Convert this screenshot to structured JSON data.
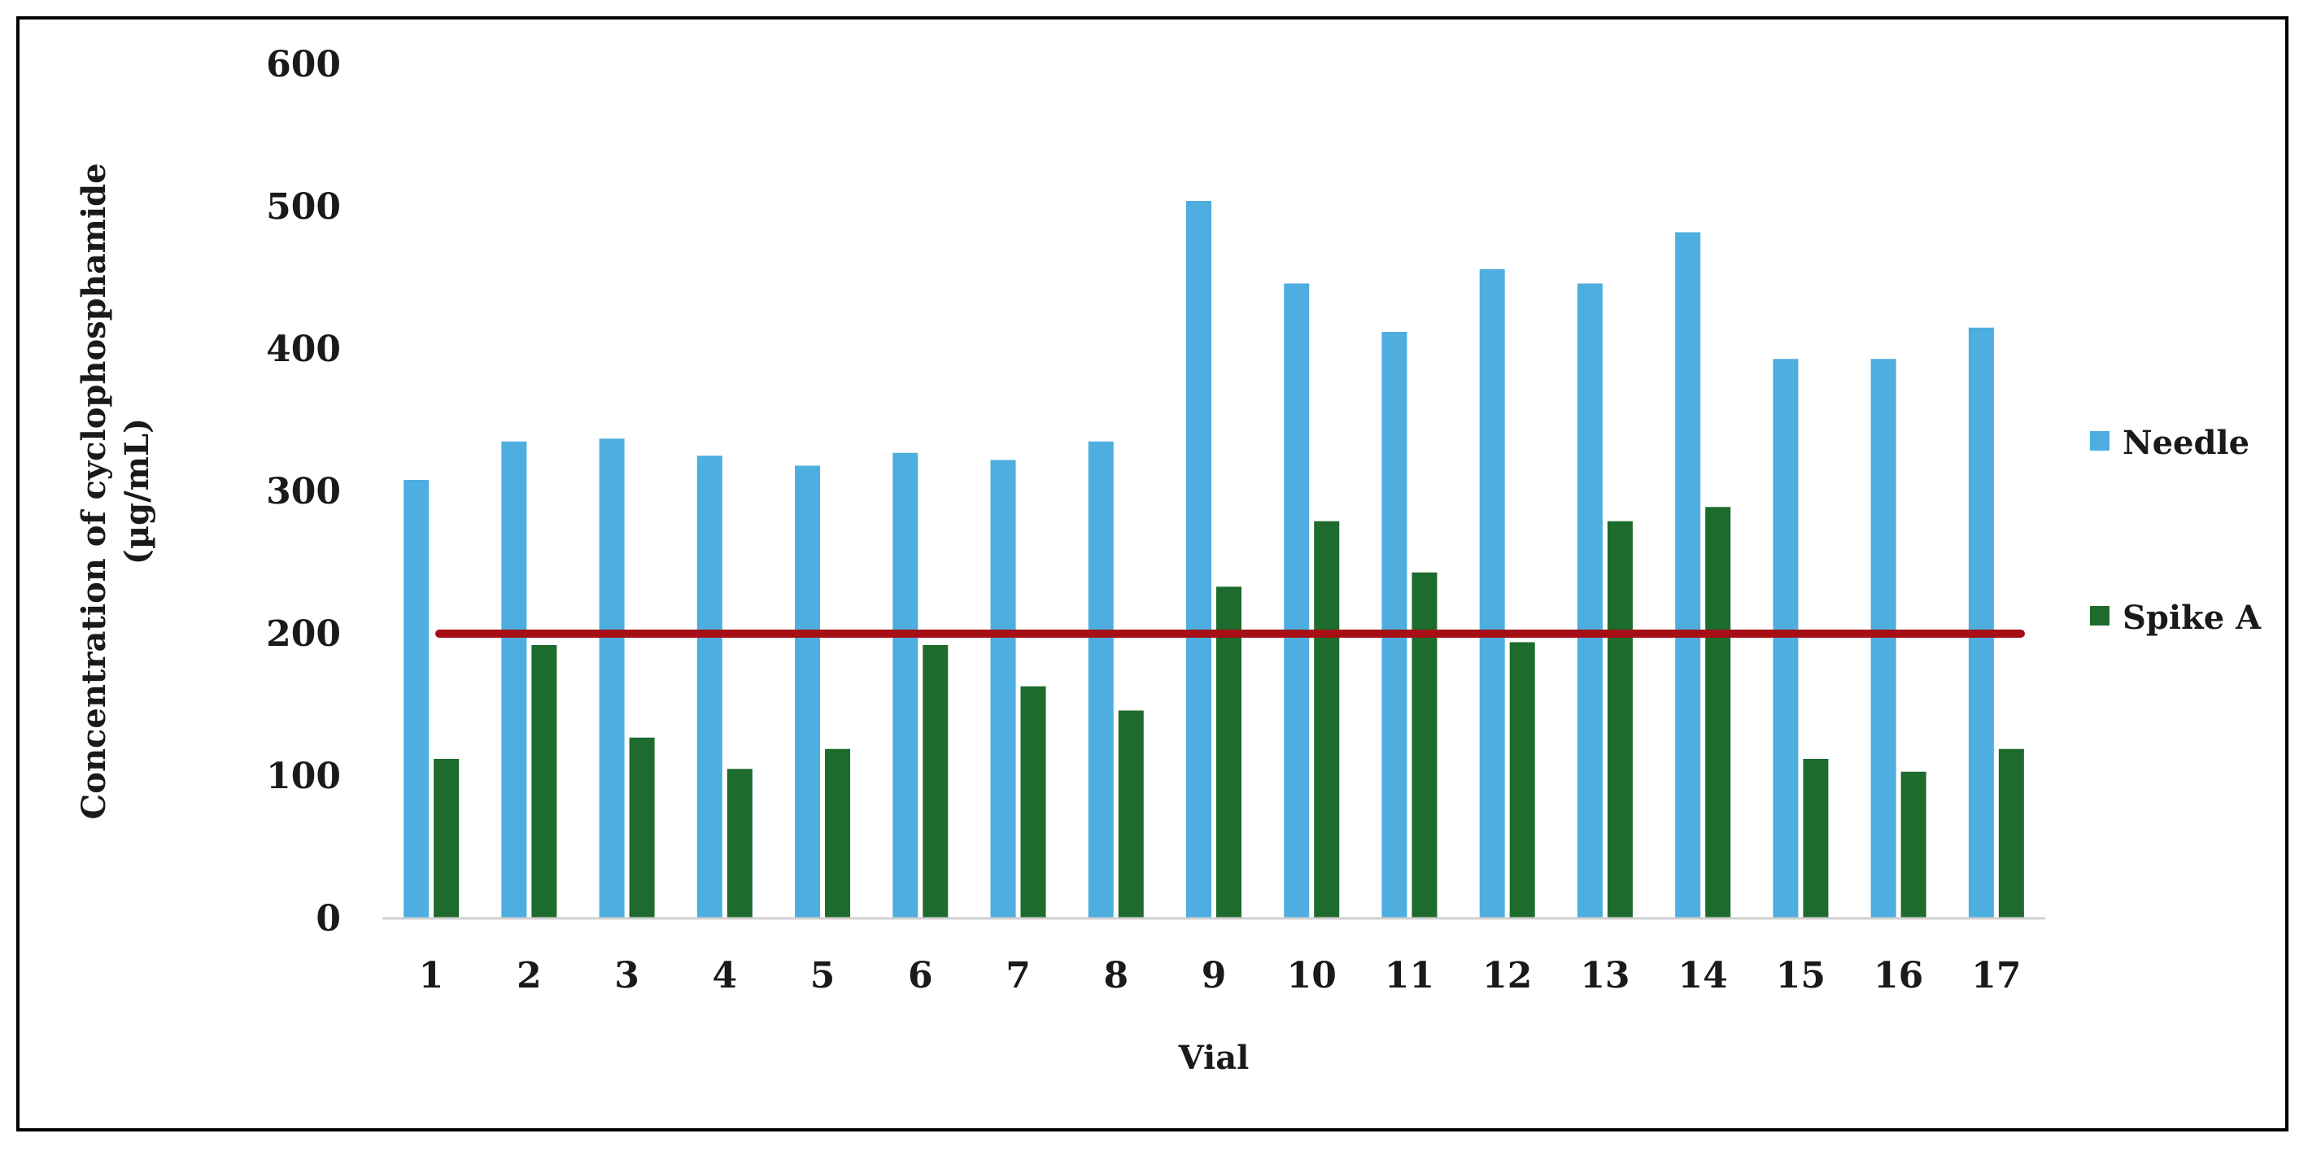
{
  "chart_data": {
    "type": "bar",
    "title": "",
    "xlabel": "Vial",
    "ylabel_lines": [
      "Concentration of cyclophosphamide",
      "(µg/mL)"
    ],
    "categories": [
      "1",
      "2",
      "3",
      "4",
      "5",
      "6",
      "7",
      "8",
      "9",
      "10",
      "11",
      "12",
      "13",
      "14",
      "15",
      "16",
      "17"
    ],
    "series": [
      {
        "name": "Needle",
        "color": "#4DAEDF",
        "values": [
          308,
          335,
          337,
          325,
          318,
          327,
          322,
          335,
          504,
          446,
          412,
          456,
          446,
          482,
          393,
          393,
          415
        ]
      },
      {
        "name": "Spike A",
        "color": "#1E6B2E",
        "values": [
          112,
          192,
          127,
          105,
          119,
          192,
          163,
          146,
          233,
          279,
          243,
          194,
          279,
          289,
          112,
          103,
          119
        ]
      }
    ],
    "reference_line": {
      "value": 200,
      "color": "#A50F15"
    },
    "ylim": [
      0,
      600
    ],
    "yticks": [
      0,
      100,
      200,
      300,
      400,
      500,
      600
    ],
    "grid": false,
    "legend_position": "right"
  }
}
